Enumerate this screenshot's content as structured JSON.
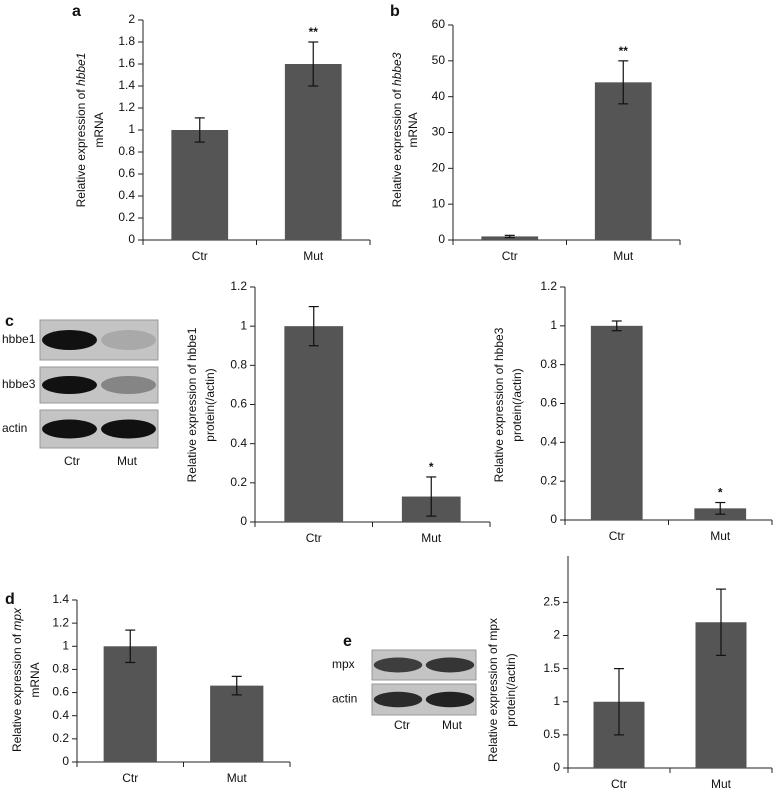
{
  "chart_data": [
    {
      "type": "bar",
      "panel": "a",
      "ylabel": [
        [
          {
            "text": "Relative expression of ",
            "italic": false
          },
          {
            "text": "hbbe1",
            "italic": true
          }
        ],
        [
          {
            "text": "mRNA",
            "italic": false
          }
        ]
      ],
      "categories": [
        "Ctr",
        "Mut"
      ],
      "values": [
        1.0,
        1.6
      ],
      "errors": [
        0.11,
        0.2
      ],
      "value_annotations": [
        null,
        "**"
      ],
      "color": "#555555",
      "ylim": [
        0,
        2
      ],
      "yticks": [
        0,
        0.2,
        0.4,
        0.6,
        0.8,
        1,
        1.2,
        1.4,
        1.6,
        1.8,
        2
      ]
    },
    {
      "type": "bar",
      "panel": "b",
      "ylabel": [
        [
          {
            "text": "Relative expression of ",
            "italic": false
          },
          {
            "text": "hbbe3",
            "italic": true
          }
        ],
        [
          {
            "text": "mRNA",
            "italic": false
          }
        ]
      ],
      "categories": [
        "Ctr",
        "Mut"
      ],
      "values": [
        1,
        44
      ],
      "errors": [
        0.3,
        6
      ],
      "value_annotations": [
        null,
        "**"
      ],
      "color": "#555555",
      "ylim": [
        0,
        60
      ],
      "yticks": [
        0,
        10,
        20,
        30,
        40,
        50,
        60
      ]
    },
    {
      "type": "bar",
      "ylabel": [
        [
          {
            "text": "Relative expression of hbbe1",
            "italic": false
          }
        ],
        [
          {
            "text": "protein(/actin)",
            "italic": false
          }
        ]
      ],
      "categories": [
        "Ctr",
        "Mut"
      ],
      "values": [
        1,
        0.13
      ],
      "errors": [
        0.1,
        0.1
      ],
      "value_annotations": [
        null,
        "*"
      ],
      "color": "#555555",
      "ylim": [
        0,
        1.2
      ],
      "yticks": [
        0,
        0.2,
        0.4,
        0.6,
        0.8,
        1,
        1.2
      ]
    },
    {
      "type": "bar",
      "ylabel": [
        [
          {
            "text": "Relative expression of hbbe3",
            "italic": false
          }
        ],
        [
          {
            "text": "protein(/actin)",
            "italic": false
          }
        ]
      ],
      "categories": [
        "Ctr",
        "Mut"
      ],
      "values": [
        1,
        0.06
      ],
      "errors": [
        0.025,
        0.03
      ],
      "value_annotations": [
        null,
        "*"
      ],
      "color": "#555555",
      "ylim": [
        0,
        1.2
      ],
      "yticks": [
        0,
        0.2,
        0.4,
        0.6,
        0.8,
        1,
        1.2
      ]
    },
    {
      "type": "bar",
      "panel": "d",
      "ylabel": [
        [
          {
            "text": "Relative expression of ",
            "italic": false
          },
          {
            "text": "mpx",
            "italic": true
          }
        ],
        [
          {
            "text": "mRNA",
            "italic": false
          }
        ]
      ],
      "categories": [
        "Ctr",
        "Mut"
      ],
      "values": [
        1.0,
        0.66
      ],
      "errors": [
        0.14,
        0.08
      ],
      "value_annotations": [
        null,
        null
      ],
      "color": "#555555",
      "ylim": [
        0,
        1.4
      ],
      "yticks": [
        0,
        0.2,
        0.4,
        0.6,
        0.8,
        1,
        1.2,
        1.4
      ]
    },
    {
      "type": "bar",
      "ylabel": [
        [
          {
            "text": "Relative expression of mpx",
            "italic": false
          }
        ],
        [
          {
            "text": "protein(/actin)",
            "italic": false
          }
        ]
      ],
      "categories": [
        "Ctr",
        "Mut"
      ],
      "values": [
        1,
        2.2
      ],
      "errors": [
        0.5,
        0.5
      ],
      "value_annotations": [
        null,
        null
      ],
      "color": "#555555",
      "ylim": [
        0,
        3.2
      ],
      "yticks": [
        0,
        0.5,
        1,
        1.5,
        2,
        2.5
      ]
    }
  ],
  "blots": [
    {
      "panel": "c",
      "rows": [
        "hbbe1",
        "hbbe3",
        "actin"
      ],
      "lanes": [
        "Ctr",
        "Mut"
      ]
    },
    {
      "panel": "e",
      "rows": [
        "mpx",
        "actin"
      ],
      "lanes": [
        "Ctr",
        "Mut"
      ]
    }
  ]
}
